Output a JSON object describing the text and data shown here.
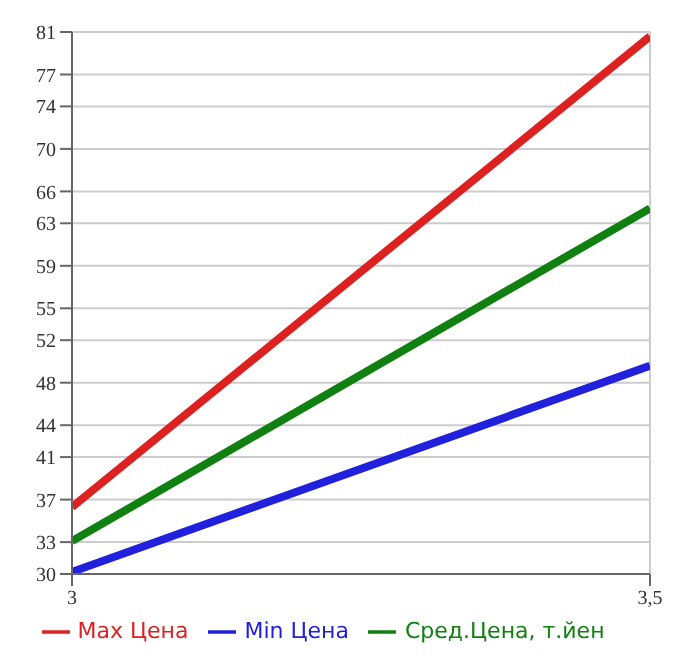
{
  "chart_data": {
    "type": "line",
    "x": [
      3,
      3.5
    ],
    "xlim": [
      3,
      3.5
    ],
    "xticks": [
      {
        "value": 3,
        "label": "3"
      },
      {
        "value": 3.5,
        "label": "3,5"
      }
    ],
    "ylim": [
      30,
      81
    ],
    "yticks": [
      30,
      33,
      37,
      41,
      44,
      48,
      52,
      55,
      59,
      63,
      66,
      70,
      74,
      77,
      81
    ],
    "series": [
      {
        "name": "Max Цена",
        "color": "#dd2020",
        "values": [
          36.3,
          80.6
        ]
      },
      {
        "name": "Min Цена",
        "color": "#2020dd",
        "values": [
          30.2,
          49.6
        ]
      },
      {
        "name": "Сред.Цена, т.йен",
        "color": "#108010",
        "values": [
          33.1,
          64.4
        ]
      }
    ],
    "grid": true,
    "legend": "bottom",
    "marker": "none"
  }
}
